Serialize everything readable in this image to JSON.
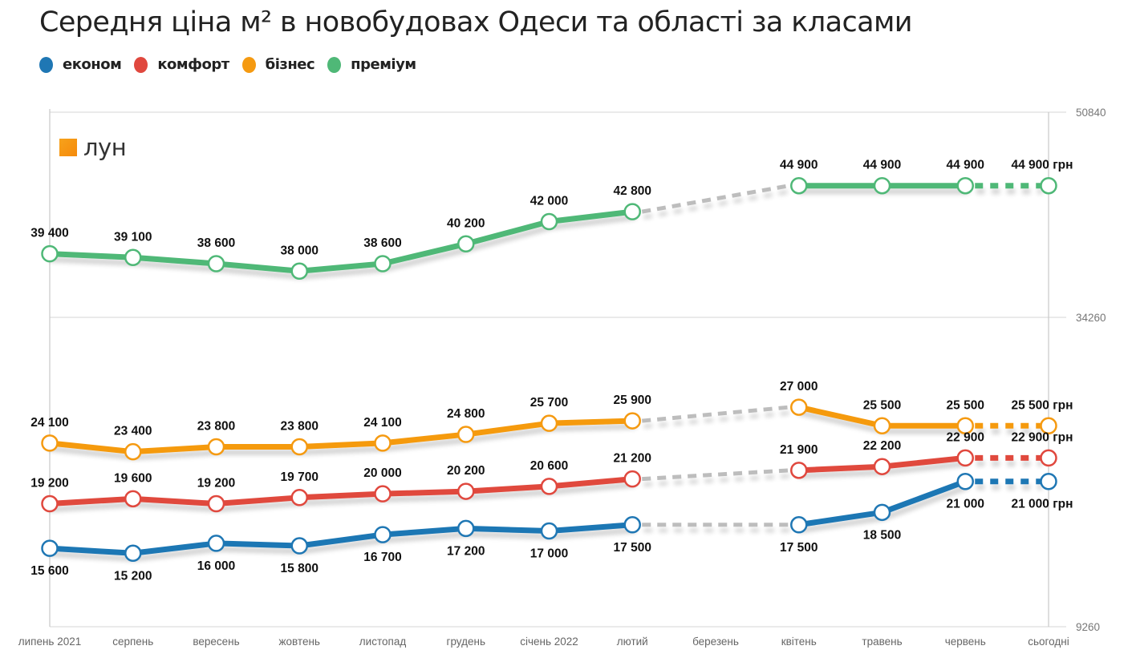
{
  "title": "Середня ціна м² в новобудовах Одеси та області за класами",
  "logo_text": "лун",
  "legend": [
    {
      "label": "економ",
      "color": "#1f77b4"
    },
    {
      "label": "комфорт",
      "color": "#e0483e"
    },
    {
      "label": "бізнес",
      "color": "#f59a11"
    },
    {
      "label": "преміум",
      "color": "#4fb877"
    }
  ],
  "chart_data": {
    "type": "line",
    "title": "Середня ціна м² в новобудовах Одеси та області за класами",
    "xlabel": "",
    "ylabel": "",
    "categories": [
      "липень 2021",
      "серпень",
      "вересень",
      "жовтень",
      "листопад",
      "грудень",
      "січень 2022",
      "лютий",
      "березень",
      "квітень",
      "травень",
      "червень",
      "сьогодні"
    ],
    "y_ticks": [
      50840,
      34260,
      9260
    ],
    "y_axis_side": "right",
    "ylim": [
      9260,
      50840
    ],
    "grid": true,
    "legend_position": "top-left",
    "gap_color": "#bdbdbd",
    "unit_suffix": "грн",
    "series": [
      {
        "name": "економ",
        "color": "#1f77b4",
        "label_position": "below",
        "values": [
          15600,
          15200,
          16000,
          15800,
          16700,
          17200,
          17000,
          17500,
          null,
          17500,
          18500,
          21000,
          21000
        ],
        "labels": [
          "15 600",
          "15 200",
          "16 000",
          "15 800",
          "16 700",
          "17 200",
          "17 000",
          "17 500",
          "",
          "17 500",
          "18 500",
          "21 000",
          "21 000 грн"
        ]
      },
      {
        "name": "комфорт",
        "color": "#e0483e",
        "label_position": "above",
        "values": [
          19200,
          19600,
          19200,
          19700,
          20000,
          20200,
          20600,
          21200,
          null,
          21900,
          22200,
          22900,
          22900
        ],
        "labels": [
          "19 200",
          "19 600",
          "19 200",
          "19 700",
          "20 000",
          "20 200",
          "20 600",
          "21 200",
          "",
          "21 900",
          "22 200",
          "22 900",
          "22 900 грн"
        ]
      },
      {
        "name": "бізнес",
        "color": "#f59a11",
        "label_position": "above",
        "values": [
          24100,
          23400,
          23800,
          23800,
          24100,
          24800,
          25700,
          25900,
          null,
          27000,
          25500,
          25500,
          25500
        ],
        "labels": [
          "24 100",
          "23 400",
          "23 800",
          "23 800",
          "24 100",
          "24 800",
          "25 700",
          "25 900",
          "",
          "27 000",
          "25 500",
          "25 500",
          "25 500 грн"
        ]
      },
      {
        "name": "преміум",
        "color": "#4fb877",
        "label_position": "above",
        "values": [
          39400,
          39100,
          38600,
          38000,
          38600,
          40200,
          42000,
          42800,
          null,
          44900,
          44900,
          44900,
          44900
        ],
        "labels": [
          "39 400",
          "39 100",
          "38 600",
          "38 000",
          "38 600",
          "40 200",
          "42 000",
          "42 800",
          "",
          "44 900",
          "44 900",
          "44 900",
          "44 900 грн"
        ]
      }
    ]
  }
}
